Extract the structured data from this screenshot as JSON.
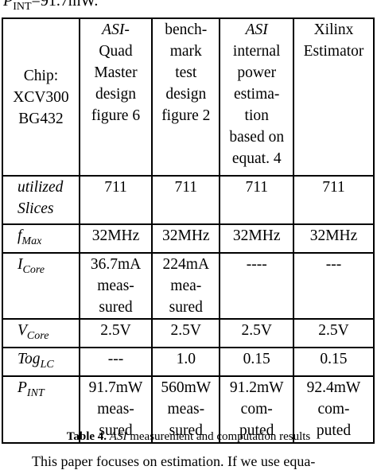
{
  "top_text": {
    "main": "P",
    "sub": "INT",
    "rest": "=91.7mW."
  },
  "table": {
    "header": [
      [
        "Chip:",
        "XCV300",
        "BG432"
      ],
      [
        "ASI-",
        "Quad",
        "Master",
        "design",
        "figure 6"
      ],
      [
        "bench-",
        "mark",
        "test",
        "design",
        "figure 2"
      ],
      [
        "ASI",
        "internal",
        "power",
        "estima-",
        "tion",
        "based on",
        "equat. 4"
      ],
      [
        "Xilinx",
        "Estimator"
      ]
    ],
    "rows": [
      {
        "label": {
          "lines": [
            "utilized",
            "Slices"
          ]
        },
        "cells": [
          [
            "711"
          ],
          [
            "711"
          ],
          [
            "711"
          ],
          [
            "711"
          ]
        ]
      },
      {
        "label": {
          "main": "f",
          "sub": "Max"
        },
        "cells": [
          [
            "32MHz"
          ],
          [
            "32MHz"
          ],
          [
            "32MHz"
          ],
          [
            "32MHz"
          ]
        ]
      },
      {
        "label": {
          "main": "I",
          "sub": "Core"
        },
        "cells": [
          [
            "36.7mA",
            "meas-",
            "sured"
          ],
          [
            "224mA",
            "mea-",
            "sured"
          ],
          [
            "----"
          ],
          [
            "---"
          ]
        ]
      },
      {
        "label": {
          "main": "V",
          "sub": "Core"
        },
        "cells": [
          [
            "2.5V"
          ],
          [
            "2.5V"
          ],
          [
            "2.5V"
          ],
          [
            "2.5V"
          ]
        ]
      },
      {
        "label": {
          "main": "Tog",
          "sub": "LC"
        },
        "cells": [
          [
            "---"
          ],
          [
            "1.0"
          ],
          [
            "0.15"
          ],
          [
            "0.15"
          ]
        ]
      },
      {
        "label": {
          "main": "P",
          "sub": "INT"
        },
        "cells": [
          [
            "91.7mW",
            "meas-",
            "sured"
          ],
          [
            "560mW",
            "meas-",
            "sured"
          ],
          [
            "91.2mW",
            "com-",
            "puted"
          ],
          [
            "92.4mW",
            "com-",
            "puted"
          ]
        ]
      }
    ]
  },
  "caption": {
    "bold": "Table 4.",
    "italic": "ASI",
    "rest": " measurement and computation results"
  },
  "footer_text": "This paper focuses on estimation. If we use equa-"
}
